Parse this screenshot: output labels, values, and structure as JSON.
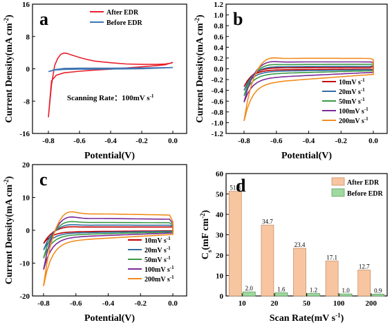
{
  "chart_data": [
    {
      "panel": "a",
      "type": "line",
      "xlabel": "Potential(V)",
      "ylabel": "Current Density(mA cm",
      "ylabel_sup": "-2",
      "ylabel_tail": ")",
      "xlim": [
        -0.8,
        0.0
      ],
      "ylim": [
        -16,
        16
      ],
      "xticks": [
        "-0.8",
        "-0.6",
        "-0.4",
        "-0.2",
        "0.0"
      ],
      "yticks": [
        "-16",
        "-8",
        "0",
        "8",
        "16"
      ],
      "annotation": "Scanning Rate：100mV s",
      "annotation_sup": "-1",
      "legend": "top-right",
      "series": [
        {
          "name": "After EDR",
          "color": "#e8202c",
          "x": [
            -0.8,
            -0.78,
            -0.76,
            -0.74,
            -0.72,
            -0.7,
            -0.68,
            -0.65,
            -0.6,
            -0.55,
            -0.5,
            -0.4,
            -0.3,
            -0.2,
            -0.1,
            -0.05,
            -0.01,
            0.0,
            -0.05,
            -0.1,
            -0.2,
            -0.3,
            -0.4,
            -0.5,
            -0.6,
            -0.7,
            -0.75,
            -0.78,
            -0.8
          ],
          "y": [
            -12.0,
            -4.0,
            0.8,
            2.6,
            3.6,
            3.9,
            3.8,
            3.4,
            2.8,
            2.3,
            1.9,
            1.5,
            1.2,
            1.1,
            1.1,
            1.2,
            1.4,
            1.6,
            1.0,
            0.8,
            0.5,
            0.2,
            -0.1,
            -0.3,
            -0.6,
            -1.0,
            -1.6,
            -3.0,
            -12.0
          ]
        },
        {
          "name": "Before EDR",
          "color": "#3f75b3",
          "x": [
            -0.8,
            -0.76,
            -0.7,
            -0.6,
            -0.4,
            -0.2,
            0.0,
            -0.2,
            -0.4,
            -0.6,
            -0.7,
            -0.76,
            -0.8
          ],
          "y": [
            -0.7,
            -0.2,
            0.1,
            0.15,
            0.15,
            0.2,
            0.3,
            0.0,
            -0.05,
            -0.1,
            -0.15,
            -0.3,
            -0.7
          ]
        }
      ]
    },
    {
      "panel": "b",
      "type": "line",
      "xlabel": "Potential(V)",
      "ylabel": "Current Density(mA cm",
      "ylabel_sup": "-2",
      "ylabel_tail": ")",
      "xlim": [
        -0.8,
        0.0
      ],
      "ylim": [
        -1.2,
        1.2
      ],
      "xticks": [
        "-0.8",
        "-0.6",
        "-0.4",
        "-0.2",
        "0.0"
      ],
      "yticks": [
        "-1.2",
        "-1.0",
        "-0.8",
        "-0.6",
        "-0.4",
        "-0.2",
        "0.0",
        "0.2",
        "0.4",
        "0.6",
        "0.8",
        "1.0",
        "1.2"
      ],
      "legend": "bottom-right",
      "series": [
        {
          "name": "10mV s",
          "name_sup": "-1",
          "color": "#c00000",
          "peak": 0.02,
          "tail": 0.04,
          "dip": -0.33,
          "base": -0.02
        },
        {
          "name": "20mV s",
          "name_sup": "-1",
          "color": "#2f6fa3",
          "peak": 0.04,
          "tail": 0.06,
          "dip": -0.4,
          "base": -0.05
        },
        {
          "name": "50mV s",
          "name_sup": "-1",
          "color": "#3a9a45",
          "peak": 0.08,
          "tail": 0.09,
          "dip": -0.5,
          "base": -0.1
        },
        {
          "name": "100mV s",
          "name_sup": "-1",
          "color": "#7a2a98",
          "peak": 0.13,
          "tail": 0.12,
          "dip": -0.62,
          "base": -0.18
        },
        {
          "name": "200mV s",
          "name_sup": "-1",
          "color": "#f28c1c",
          "peak": 0.2,
          "tail": 0.17,
          "dip": -0.97,
          "base": -0.28
        }
      ]
    },
    {
      "panel": "c",
      "type": "line",
      "xlabel": "Potential(V)",
      "ylabel": "Current Density(mA cm",
      "ylabel_sup": "-2",
      "ylabel_tail": ")",
      "xlim": [
        -0.8,
        0.0
      ],
      "ylim": [
        -20,
        20
      ],
      "xticks": [
        "-0.8",
        "-0.6",
        "-0.4",
        "-0.2",
        "0.0"
      ],
      "yticks": [
        "-20",
        "-10",
        "0",
        "10",
        "20"
      ],
      "legend": "bottom-right",
      "series": [
        {
          "name": "10mV s",
          "name_sup": "-1",
          "color": "#c00000",
          "peak": 1.0,
          "tail": 1.0,
          "dip": -4.0,
          "base": -0.5
        },
        {
          "name": "20mV s",
          "name_sup": "-1",
          "color": "#2f6fa3",
          "peak": 1.6,
          "tail": 1.3,
          "dip": -6.0,
          "base": -0.9
        },
        {
          "name": "50mV s",
          "name_sup": "-1",
          "color": "#3a9a45",
          "peak": 2.5,
          "tail": 1.6,
          "dip": -8.5,
          "base": -1.5
        },
        {
          "name": "100mV s",
          "name_sup": "-1",
          "color": "#7a2a98",
          "peak": 3.8,
          "tail": 2.0,
          "dip": -12.0,
          "base": -2.3
        },
        {
          "name": "200mV s",
          "name_sup": "-1",
          "color": "#f28c1c",
          "peak": 5.3,
          "tail": 2.6,
          "dip": -17.0,
          "base": -3.5
        }
      ]
    },
    {
      "panel": "d",
      "type": "bar",
      "xlabel": "Scan Rate(mV s",
      "xlabel_sup": "-1",
      "xlabel_tail": ")",
      "ylabel": "C",
      "ylabel_sub": "s",
      "ylabel_rest": "(mF cm",
      "ylabel_sup": "-2",
      "ylabel_tail": ")",
      "ylim": [
        0,
        60
      ],
      "yticks": [
        "0",
        "10",
        "20",
        "30",
        "40",
        "50",
        "60"
      ],
      "categories": [
        "10",
        "20",
        "50",
        "100",
        "200"
      ],
      "legend": "top-right",
      "series": [
        {
          "name": "After EDR",
          "color": "#f7c59f",
          "edge": "#c9916a",
          "values": [
            51.3,
            34.7,
            23.4,
            17.1,
            12.7
          ],
          "labels": [
            "51.3",
            "34.7",
            "23.4",
            "17.1",
            "12.7"
          ]
        },
        {
          "name": "Before EDR",
          "color": "#9fd99f",
          "edge": "#5f9f5f",
          "values": [
            2.0,
            1.6,
            1.2,
            1.0,
            0.9
          ],
          "labels": [
            "2.0",
            "1.6",
            "1.2",
            "1.0",
            "0.9"
          ]
        }
      ]
    }
  ]
}
